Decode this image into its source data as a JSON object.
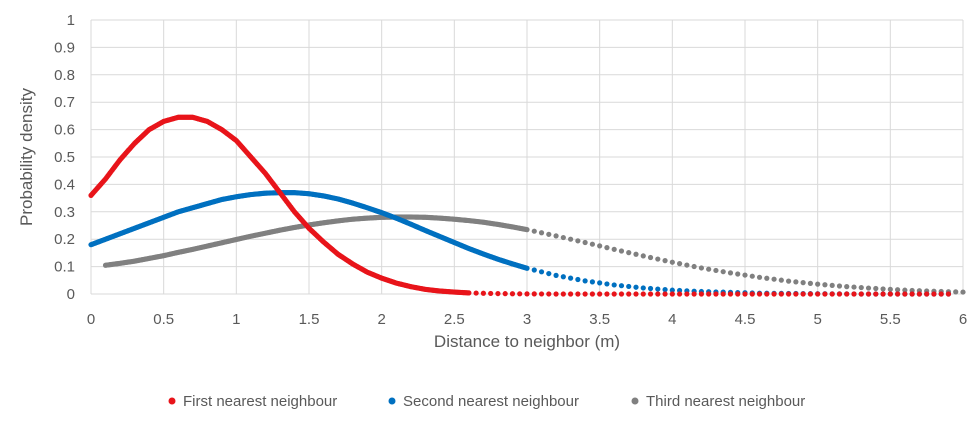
{
  "chart_data": {
    "type": "scatter",
    "xlabel": "Distance to neighbor (m)",
    "ylabel": "Probability density",
    "xlim": [
      0,
      6
    ],
    "ylim": [
      0,
      1
    ],
    "x_ticks": [
      "0",
      "0.5",
      "1",
      "1.5",
      "2",
      "2.5",
      "3",
      "3.5",
      "4",
      "4.5",
      "5",
      "5.5",
      "6"
    ],
    "y_ticks": [
      "0",
      "0.1",
      "0.2",
      "0.3",
      "0.4",
      "0.5",
      "0.6",
      "0.7",
      "0.8",
      "0.9",
      "1"
    ],
    "grid": true,
    "legend_position": "bottom",
    "series": [
      {
        "name": "First nearest neighbour",
        "color": "#e8141a",
        "points": [
          [
            0.0,
            0.36
          ],
          [
            0.1,
            0.42
          ],
          [
            0.2,
            0.49
          ],
          [
            0.3,
            0.55
          ],
          [
            0.4,
            0.6
          ],
          [
            0.5,
            0.63
          ],
          [
            0.6,
            0.645
          ],
          [
            0.7,
            0.645
          ],
          [
            0.8,
            0.63
          ],
          [
            0.9,
            0.6
          ],
          [
            1.0,
            0.56
          ],
          [
            1.1,
            0.5
          ],
          [
            1.2,
            0.44
          ],
          [
            1.3,
            0.37
          ],
          [
            1.4,
            0.3
          ],
          [
            1.5,
            0.24
          ],
          [
            1.6,
            0.19
          ],
          [
            1.7,
            0.145
          ],
          [
            1.8,
            0.11
          ],
          [
            1.9,
            0.08
          ],
          [
            2.0,
            0.058
          ],
          [
            2.1,
            0.04
          ],
          [
            2.2,
            0.027
          ],
          [
            2.3,
            0.017
          ],
          [
            2.4,
            0.011
          ],
          [
            2.5,
            0.007
          ],
          [
            2.6,
            0.004
          ],
          [
            2.8,
            0.0015
          ],
          [
            3.0,
            0.0005
          ],
          [
            3.2,
            0.0
          ],
          [
            3.5,
            0.0
          ],
          [
            3.8,
            0.0
          ],
          [
            4.1,
            0.0
          ],
          [
            5.9,
            0.0
          ]
        ]
      },
      {
        "name": "Second nearest neighbour",
        "color": "#0070c0",
        "points": [
          [
            0.0,
            0.18
          ],
          [
            0.1,
            0.2
          ],
          [
            0.2,
            0.22
          ],
          [
            0.3,
            0.24
          ],
          [
            0.4,
            0.26
          ],
          [
            0.5,
            0.28
          ],
          [
            0.6,
            0.3
          ],
          [
            0.7,
            0.315
          ],
          [
            0.8,
            0.33
          ],
          [
            0.9,
            0.345
          ],
          [
            1.0,
            0.355
          ],
          [
            1.1,
            0.363
          ],
          [
            1.2,
            0.368
          ],
          [
            1.3,
            0.37
          ],
          [
            1.4,
            0.37
          ],
          [
            1.5,
            0.366
          ],
          [
            1.6,
            0.358
          ],
          [
            1.7,
            0.347
          ],
          [
            1.8,
            0.332
          ],
          [
            1.9,
            0.315
          ],
          [
            2.0,
            0.297
          ],
          [
            2.1,
            0.277
          ],
          [
            2.2,
            0.255
          ],
          [
            2.3,
            0.232
          ],
          [
            2.4,
            0.21
          ],
          [
            2.5,
            0.188
          ],
          [
            2.6,
            0.166
          ],
          [
            2.7,
            0.146
          ],
          [
            2.8,
            0.127
          ],
          [
            2.9,
            0.11
          ],
          [
            3.0,
            0.094
          ],
          [
            3.2,
            0.068
          ],
          [
            3.4,
            0.048
          ],
          [
            3.6,
            0.033
          ],
          [
            3.8,
            0.022
          ],
          [
            4.0,
            0.014
          ],
          [
            4.2,
            0.009
          ],
          [
            4.4,
            0.006
          ],
          [
            4.6,
            0.003
          ],
          [
            4.8,
            0.002
          ],
          [
            5.0,
            0.001
          ],
          [
            5.3,
            0.0
          ],
          [
            5.6,
            0.0
          ],
          [
            5.9,
            0.0
          ]
        ]
      },
      {
        "name": "Third nearest neighbour",
        "color": "#808080",
        "points": [
          [
            0.1,
            0.105
          ],
          [
            0.2,
            0.112
          ],
          [
            0.3,
            0.12
          ],
          [
            0.4,
            0.13
          ],
          [
            0.5,
            0.14
          ],
          [
            0.6,
            0.152
          ],
          [
            0.7,
            0.163
          ],
          [
            0.8,
            0.175
          ],
          [
            0.9,
            0.187
          ],
          [
            1.0,
            0.199
          ],
          [
            1.1,
            0.211
          ],
          [
            1.2,
            0.222
          ],
          [
            1.3,
            0.233
          ],
          [
            1.4,
            0.243
          ],
          [
            1.5,
            0.252
          ],
          [
            1.6,
            0.26
          ],
          [
            1.7,
            0.267
          ],
          [
            1.8,
            0.273
          ],
          [
            1.9,
            0.277
          ],
          [
            2.0,
            0.28
          ],
          [
            2.1,
            0.281
          ],
          [
            2.2,
            0.281
          ],
          [
            2.3,
            0.28
          ],
          [
            2.4,
            0.277
          ],
          [
            2.5,
            0.273
          ],
          [
            2.6,
            0.268
          ],
          [
            2.7,
            0.262
          ],
          [
            2.8,
            0.254
          ],
          [
            2.9,
            0.245
          ],
          [
            3.0,
            0.235
          ],
          [
            3.2,
            0.212
          ],
          [
            3.4,
            0.188
          ],
          [
            3.6,
            0.163
          ],
          [
            3.8,
            0.139
          ],
          [
            4.0,
            0.116
          ],
          [
            4.2,
            0.095
          ],
          [
            4.4,
            0.077
          ],
          [
            4.6,
            0.061
          ],
          [
            4.8,
            0.047
          ],
          [
            5.0,
            0.036
          ],
          [
            5.2,
            0.027
          ],
          [
            5.4,
            0.02
          ],
          [
            5.6,
            0.014
          ],
          [
            5.8,
            0.01
          ],
          [
            6.0,
            0.007
          ]
        ]
      }
    ]
  }
}
